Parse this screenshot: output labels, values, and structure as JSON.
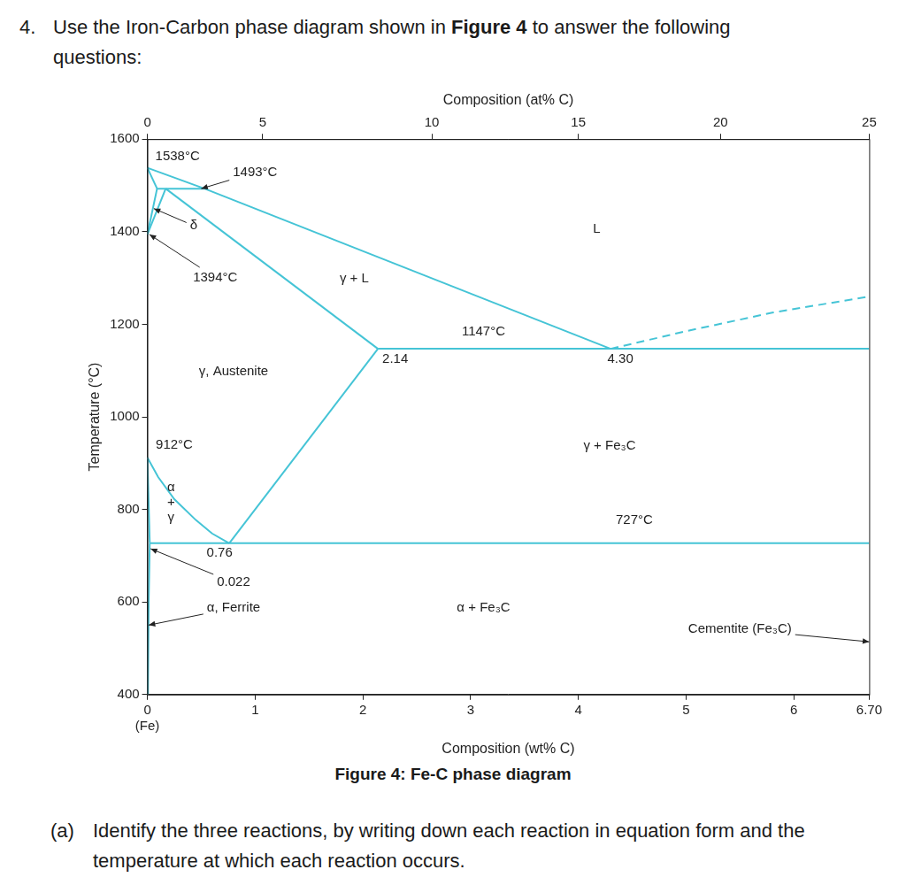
{
  "question": {
    "number": "4.",
    "parts": [
      {
        "text": "Use the Iron-Carbon phase diagram shown in "
      },
      {
        "text": "Figure 4",
        "bold": true
      },
      {
        "text": " to answer the following questions:"
      }
    ]
  },
  "chart_data": {
    "type": "line",
    "xlabel": "Composition (wt% C)",
    "x2label": "Composition (at% C)",
    "ylabel": "Temperature (°C)",
    "xlim": [
      0,
      6.7
    ],
    "ylim": [
      400,
      1600
    ],
    "xticks": [
      {
        "value": 0,
        "label": [
          "0",
          "(Fe)"
        ]
      },
      1,
      2,
      3,
      4,
      5,
      6,
      {
        "value": 6.7,
        "label": "6.70"
      }
    ],
    "x2ticks": [
      {
        "value": 0,
        "label": "0"
      },
      {
        "value": 1.07,
        "label": "5"
      },
      {
        "value": 2.64,
        "label": "10"
      },
      {
        "value": 4.0,
        "label": "15"
      },
      {
        "value": 5.32,
        "label": "20"
      },
      {
        "value": 6.7,
        "label": "25"
      }
    ],
    "yticks": [
      400,
      600,
      800,
      1000,
      1200,
      1400,
      1600
    ],
    "grid": false,
    "color": "#45c4d6",
    "series": [
      {
        "x": [
          0,
          0.53
        ],
        "values": [
          1538,
          1493
        ],
        "line_style": "solid"
      },
      {
        "x": [
          0,
          0.09
        ],
        "values": [
          1538,
          1493
        ],
        "line_style": "solid"
      },
      {
        "x": [
          0.09,
          0.53
        ],
        "values": [
          1493,
          1493
        ],
        "line_style": "solid"
      },
      {
        "x": [
          0.53,
          4.3
        ],
        "values": [
          1493,
          1147
        ],
        "line_style": "solid"
      },
      {
        "x": [
          0.17,
          2.14
        ],
        "values": [
          1493,
          1147
        ],
        "line_style": "solid"
      },
      {
        "x": [
          0,
          0.09
        ],
        "values": [
          1394,
          1493
        ],
        "line_style": "solid"
      },
      {
        "x": [
          0,
          0.17
        ],
        "values": [
          1394,
          1493
        ],
        "line_style": "solid"
      },
      {
        "x": [
          2.14,
          6.7
        ],
        "values": [
          1147,
          1147
        ],
        "line_style": "solid"
      },
      {
        "x": [
          0.76,
          2.14
        ],
        "values": [
          727,
          1147
        ],
        "line_style": "solid"
      },
      {
        "x": [
          0,
          0.1,
          0.25,
          0.45,
          0.6,
          0.76
        ],
        "values": [
          912,
          870,
          822,
          777,
          748,
          727
        ],
        "line_style": "solid"
      },
      {
        "x": [
          0,
          0.022
        ],
        "values": [
          912,
          727
        ],
        "line_style": "solid"
      },
      {
        "x": [
          0.022,
          6.7
        ],
        "values": [
          727,
          727
        ],
        "line_style": "solid"
      },
      {
        "x": [
          0.022,
          0.012,
          0.005
        ],
        "values": [
          727,
          600,
          400
        ],
        "line_style": "solid"
      },
      {
        "x": [
          4.3,
          5.0,
          5.8,
          6.7
        ],
        "values": [
          1147,
          1185,
          1225,
          1260
        ],
        "line_style": "dashed"
      }
    ],
    "annotations": [
      {
        "text": "1538°C",
        "x": 0.28,
        "y": 1562
      },
      {
        "text": "1493°C",
        "x": 1.0,
        "y": 1528,
        "target": [
          0.5,
          1493
        ]
      },
      {
        "text": "δ",
        "x": 0.43,
        "y": 1413,
        "target": [
          0.06,
          1450
        ]
      },
      {
        "text": "1394°C",
        "x": 0.63,
        "y": 1301,
        "target": [
          0.02,
          1394
        ]
      },
      {
        "text": "γ + L",
        "x": 1.92,
        "y": 1299
      },
      {
        "text": "L",
        "x": 4.17,
        "y": 1406
      },
      {
        "text": "1147°C",
        "x": 3.12,
        "y": 1183
      },
      {
        "text": "2.14",
        "x": 2.3,
        "y": 1124
      },
      {
        "text": "4.30",
        "x": 4.39,
        "y": 1124
      },
      {
        "text": "γ, Austenite",
        "x": 0.8,
        "y": 1097
      },
      {
        "text": "912°C",
        "x": 0.25,
        "y": 939
      },
      {
        "text": "γ + Fe₃C",
        "x": 4.29,
        "y": 937
      },
      {
        "text": "727°C",
        "x": 4.52,
        "y": 777
      },
      {
        "text": [
          "α",
          "+",
          "γ"
        ],
        "x": 0.22,
        "y": 815
      },
      {
        "text": "0.76",
        "x": 0.67,
        "y": 706
      },
      {
        "text": "0.022",
        "x": 0.8,
        "y": 642,
        "target": [
          0.03,
          715
        ]
      },
      {
        "text": "α, Ferrite",
        "x": 0.8,
        "y": 587,
        "target": [
          0.012,
          550
        ]
      },
      {
        "text": "α + Fe₃C",
        "x": 3.12,
        "y": 587
      },
      {
        "text": "Cementite (Fe₃C)",
        "x": 5.5,
        "y": 541,
        "target": [
          6.7,
          514
        ]
      }
    ]
  },
  "caption": "Figure 4: Fe-C phase diagram",
  "part_a": {
    "label": "(a)",
    "text": "Identify the three reactions, by writing down each reaction in equation form and the temperature at which each reaction occurs."
  }
}
